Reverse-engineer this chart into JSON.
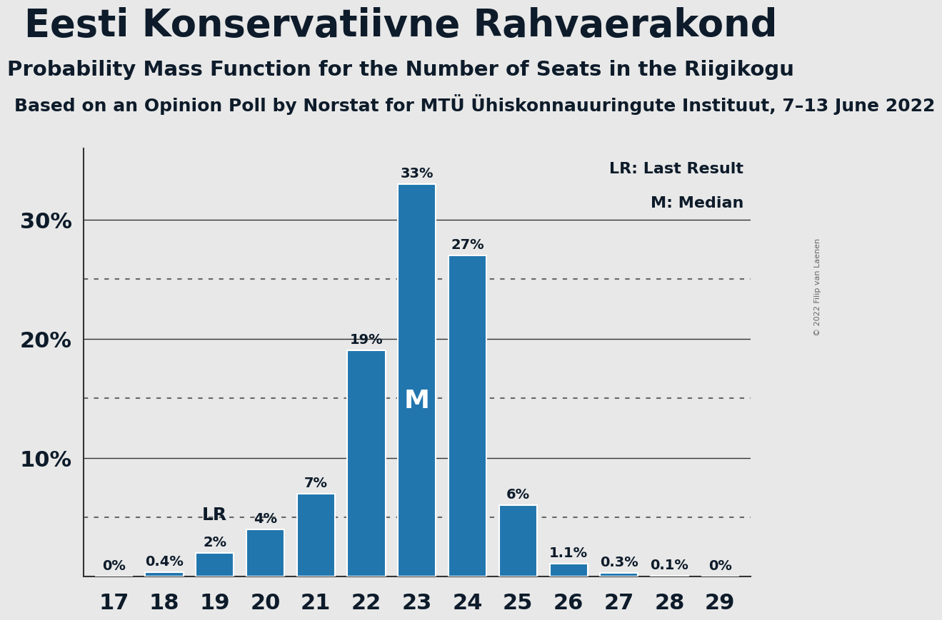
{
  "title": "Eesti Konservatiivne Rahvaerakond",
  "subtitle": "Probability Mass Function for the Number of Seats in the Riigikogu",
  "source_line": "Based on an Opinion Poll by Norstat for MTÜ Ühiskonnauuringute Instituut, 7–13 June 2022",
  "copyright": "© 2022 Filip van Laenen",
  "seats": [
    17,
    18,
    19,
    20,
    21,
    22,
    23,
    24,
    25,
    26,
    27,
    28,
    29
  ],
  "probabilities": [
    0.0,
    0.4,
    2.0,
    4.0,
    7.0,
    19.0,
    33.0,
    27.0,
    6.0,
    1.1,
    0.3,
    0.1,
    0.0
  ],
  "prob_labels": [
    "0%",
    "0.4%",
    "2%",
    "4%",
    "7%",
    "19%",
    "33%",
    "27%",
    "6%",
    "1.1%",
    "0.3%",
    "0.1%",
    "0%"
  ],
  "bar_color": "#2176AE",
  "bar_edge_color": "white",
  "background_color": "#E8E8E8",
  "lr_seat": 19,
  "median_seat": 23,
  "bar_label_fontsize": 14,
  "title_fontsize": 38,
  "subtitle_fontsize": 21,
  "source_fontsize": 18,
  "ytick_fontsize": 22,
  "xtick_fontsize": 22,
  "legend_fontsize": 16,
  "lr_fontsize": 18,
  "m_fontsize": 26,
  "dotted_lines": [
    5,
    15,
    25
  ],
  "solid_lines": [
    10,
    20,
    30
  ],
  "ylim": [
    0,
    36
  ],
  "xlim": [
    16.4,
    29.6
  ],
  "bar_width": 0.75,
  "text_color": "#0d1b2a"
}
